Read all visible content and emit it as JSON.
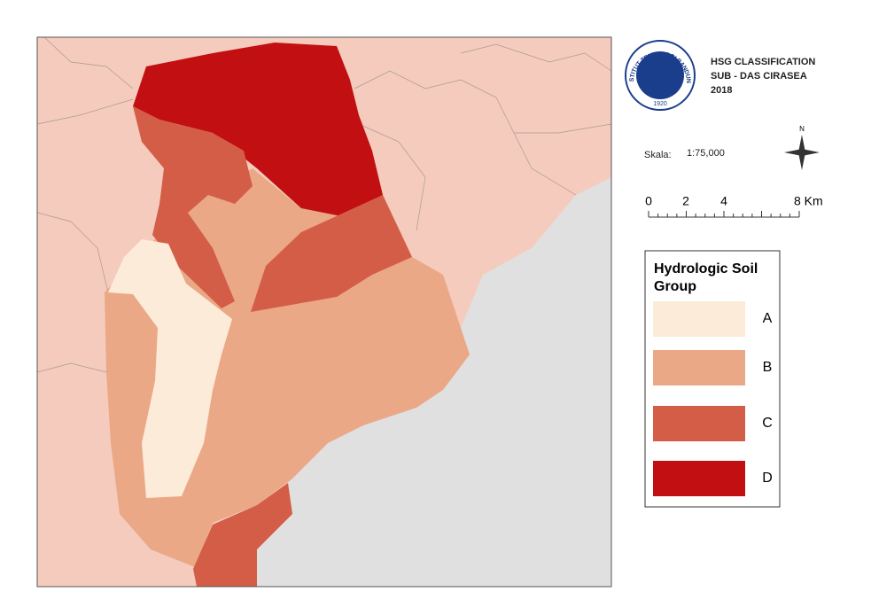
{
  "header": {
    "title_lines": [
      "HSG CLASSIFICATION",
      "SUB - DAS CIRASEA",
      "2018"
    ]
  },
  "logo": {
    "text": "INSTITUT TEKNOLOGI BANDUNG",
    "year": "1920"
  },
  "scale": {
    "label": "Skala:",
    "ratio": "1:75,000",
    "ticks": [
      "0",
      "2",
      "4",
      "8 Km"
    ]
  },
  "north": "N",
  "legend": {
    "title_lines": [
      "Hydrologic Soil",
      "Group"
    ],
    "items": [
      {
        "label": "A",
        "color": "#fdebda"
      },
      {
        "label": "B",
        "color": "#eaa886"
      },
      {
        "label": "C",
        "color": "#d45d47"
      },
      {
        "label": "D",
        "color": "#c20f12"
      }
    ]
  }
}
